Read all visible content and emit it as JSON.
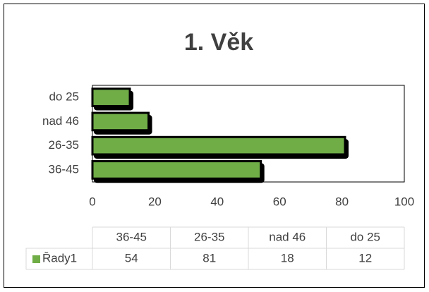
{
  "chart_data": {
    "type": "bar",
    "orientation": "horizontal",
    "title": "1. Věk",
    "categories": [
      "36-45",
      "26-35",
      "nad 46",
      "do 25"
    ],
    "series": [
      {
        "name": "Řady1",
        "color": "#70ad47",
        "values": [
          54,
          81,
          18,
          12
        ]
      }
    ],
    "xlim": [
      0,
      100
    ],
    "xticks": [
      0,
      20,
      40,
      60,
      80,
      100
    ],
    "grid": false,
    "data_table": true
  }
}
